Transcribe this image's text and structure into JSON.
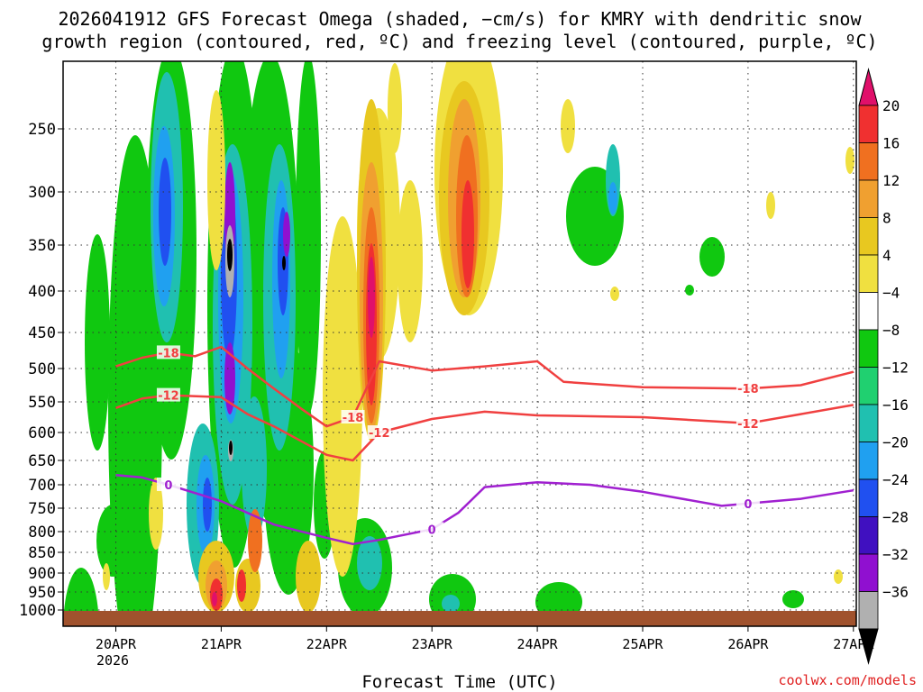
{
  "chart_data": {
    "type": "heatmap",
    "title_lines": [
      "2026041912 GFS Forecast Omega (shaded, −cm/s) for KMRY with dendritic snow",
      "growth region (contoured, red, ºC) and freezing level (contoured, purple, ºC)"
    ],
    "xlabel": "Forecast Time (UTC)",
    "credit": "coolwx.com/models",
    "x_ticks": [
      "20APR",
      "21APR",
      "22APR",
      "23APR",
      "24APR",
      "25APR",
      "26APR",
      "27APR"
    ],
    "x_year_label": "2026",
    "x_range_days_after_20APR_start": [
      -0.25,
      7.0
    ],
    "y_axis": "pressure (hPa, reversed)",
    "y_ticks": [
      "250",
      "300",
      "350",
      "400",
      "450",
      "500",
      "550",
      "600",
      "650",
      "700",
      "750",
      "800",
      "850",
      "900",
      "950",
      "1000"
    ],
    "ylim": [
      200,
      1000
    ],
    "colorbar": {
      "labels": [
        "20",
        "16",
        "12",
        "8",
        "4",
        "−4",
        "−8",
        "−12",
        "−16",
        "−20",
        "−24",
        "−28",
        "−32",
        "−36"
      ],
      "colors": [
        "#e0106a",
        "#f03030",
        "#f07020",
        "#f0a030",
        "#e8c820",
        "#f0e040",
        "#ffffff",
        "#10c810",
        "#20d070",
        "#20c0b0",
        "#20a0f0",
        "#2050f0",
        "#4010c0",
        "#9010d0",
        "#b0b0b0",
        "#000000"
      ]
    },
    "contours": [
      {
        "label": "-18",
        "color": "#f04040",
        "points": [
          [
            "20APR",
            497
          ],
          [
            "20APR 06Z",
            485
          ],
          [
            "20APR 12Z",
            478
          ],
          [
            "20APR 18Z",
            483
          ],
          [
            "21APR",
            470
          ],
          [
            "21APR 06Z",
            500
          ],
          [
            "21APR 12Z",
            530
          ],
          [
            "21APR 18Z",
            560
          ],
          [
            "22APR",
            590
          ],
          [
            "22APR 06Z",
            575
          ],
          [
            "22APR 12Z",
            490
          ],
          [
            "23APR",
            503
          ],
          [
            "23APR 12Z",
            497
          ],
          [
            "24APR",
            490
          ],
          [
            "24APR 06Z",
            520
          ],
          [
            "25APR",
            528
          ],
          [
            "26APR",
            530
          ],
          [
            "26APR 12Z",
            525
          ],
          [
            "27APR",
            505
          ]
        ]
      },
      {
        "label": "-12",
        "color": "#f04040",
        "points": [
          [
            "20APR",
            560
          ],
          [
            "20APR 06Z",
            545
          ],
          [
            "20APR 12Z",
            540
          ],
          [
            "21APR",
            543
          ],
          [
            "21APR 06Z",
            570
          ],
          [
            "21APR 12Z",
            590
          ],
          [
            "22APR",
            640
          ],
          [
            "22APR 06Z",
            650
          ],
          [
            "22APR 12Z",
            600
          ],
          [
            "23APR",
            578
          ],
          [
            "23APR 12Z",
            566
          ],
          [
            "24APR",
            572
          ],
          [
            "25APR",
            575
          ],
          [
            "26APR",
            585
          ],
          [
            "26APR 12Z",
            570
          ],
          [
            "27APR",
            555
          ]
        ]
      },
      {
        "label": "0",
        "color": "#a020d0",
        "points": [
          [
            "20APR",
            680
          ],
          [
            "20APR 06Z",
            685
          ],
          [
            "20APR 12Z",
            700
          ],
          [
            "21APR",
            735
          ],
          [
            "21APR 06Z",
            760
          ],
          [
            "21APR 12Z",
            785
          ],
          [
            "22APR",
            815
          ],
          [
            "22APR 06Z",
            830
          ],
          [
            "22APR 12Z",
            820
          ],
          [
            "23APR",
            795
          ],
          [
            "23APR 06Z",
            760
          ],
          [
            "23APR 12Z",
            705
          ],
          [
            "24APR",
            695
          ],
          [
            "24APR 12Z",
            700
          ],
          [
            "25APR",
            715
          ],
          [
            "25APR 18Z",
            745
          ],
          [
            "26APR",
            740
          ],
          [
            "26APR 12Z",
            730
          ],
          [
            "27APR",
            712
          ]
        ]
      }
    ]
  }
}
